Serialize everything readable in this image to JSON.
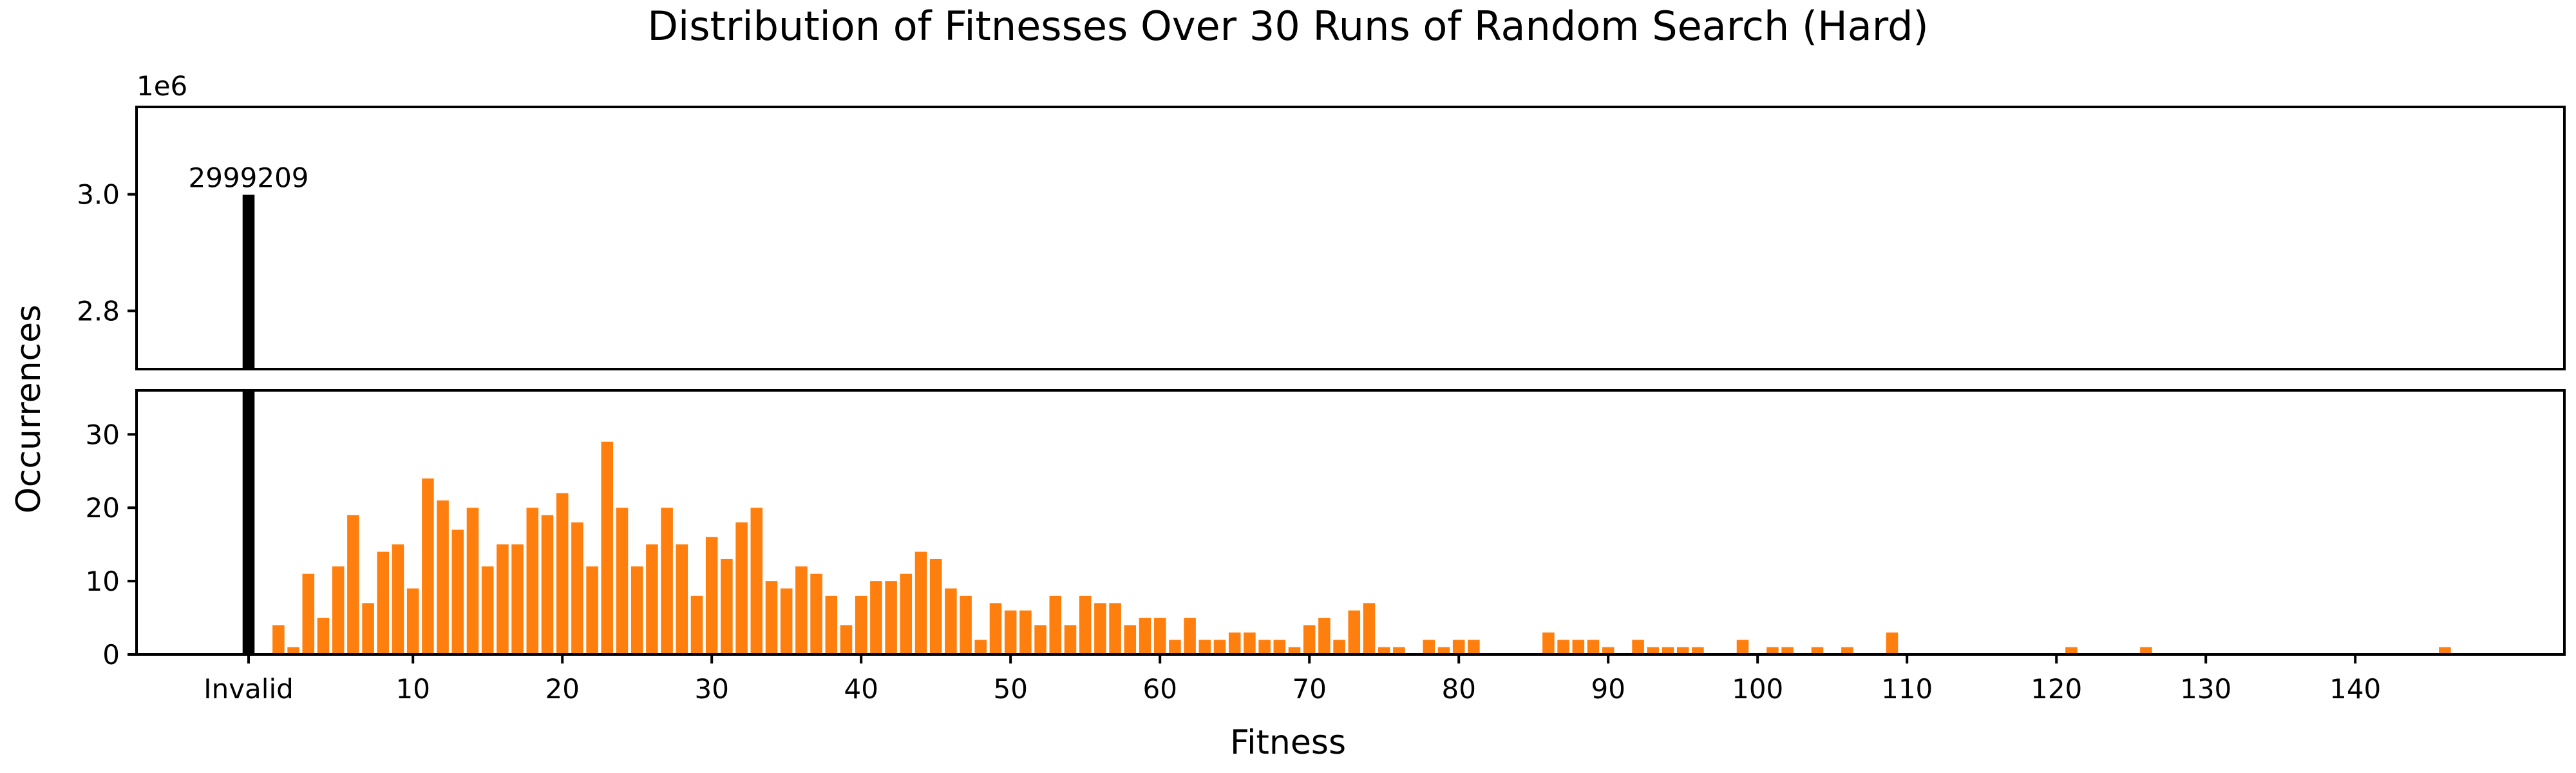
{
  "chart_data": {
    "type": "bar",
    "title": "Distribution of Fitnesses Over 30 Runs of Random Search (Hard)",
    "xlabel": "Fitness",
    "ylabel": "Occurrences",
    "colors": {
      "valid": "#ff7f0e",
      "invalid": "#000000"
    },
    "grid": false,
    "broken_axis": true,
    "top_axis": {
      "ylim": [
        2.7,
        3.15
      ],
      "yticks": [
        "2.8",
        "3.0"
      ],
      "offset_label": "1e6"
    },
    "bottom_axis": {
      "ylim": [
        0,
        36
      ],
      "yticks": [
        "0",
        "10",
        "20",
        "30"
      ]
    },
    "xlim": [
      -7.5,
      155
    ],
    "xticks": [
      {
        "x": 0,
        "label": "Invalid"
      },
      {
        "x": 11,
        "label": "10"
      },
      {
        "x": 21,
        "label": "20"
      },
      {
        "x": 31,
        "label": "30"
      },
      {
        "x": 41,
        "label": "40"
      },
      {
        "x": 51,
        "label": "50"
      },
      {
        "x": 61,
        "label": "60"
      },
      {
        "x": 71,
        "label": "70"
      },
      {
        "x": 81,
        "label": "80"
      },
      {
        "x": 91,
        "label": "90"
      },
      {
        "x": 101,
        "label": "100"
      },
      {
        "x": 111,
        "label": "110"
      },
      {
        "x": 121,
        "label": "120"
      },
      {
        "x": 131,
        "label": "130"
      },
      {
        "x": 141,
        "label": "140"
      }
    ],
    "invalid": {
      "category": "Invalid",
      "value": 2999209,
      "label": "2999209"
    },
    "fitness": [
      2,
      3,
      4,
      5,
      6,
      7,
      8,
      9,
      10,
      11,
      12,
      13,
      14,
      15,
      16,
      17,
      18,
      19,
      20,
      21,
      22,
      23,
      24,
      25,
      26,
      27,
      28,
      29,
      30,
      31,
      32,
      33,
      34,
      35,
      36,
      37,
      38,
      39,
      40,
      41,
      42,
      43,
      44,
      45,
      46,
      47,
      48,
      49,
      50,
      51,
      52,
      53,
      54,
      55,
      56,
      57,
      58,
      59,
      60,
      61,
      62,
      63,
      64,
      65,
      66,
      67,
      68,
      69,
      70,
      71,
      72,
      73,
      74,
      75,
      76,
      77,
      79,
      80,
      81,
      82,
      87,
      88,
      89,
      90,
      91,
      93,
      94,
      95,
      96,
      97,
      100,
      102,
      103,
      105,
      107,
      110,
      122,
      127,
      147
    ],
    "values": [
      4,
      1,
      11,
      5,
      12,
      19,
      7,
      14,
      15,
      9,
      24,
      21,
      17,
      20,
      12,
      15,
      15,
      20,
      19,
      22,
      18,
      12,
      29,
      20,
      12,
      15,
      20,
      15,
      8,
      16,
      13,
      18,
      20,
      10,
      9,
      12,
      11,
      8,
      4,
      8,
      10,
      10,
      11,
      14,
      13,
      9,
      8,
      2,
      7,
      6,
      6,
      4,
      8,
      4,
      8,
      7,
      7,
      4,
      5,
      5,
      2,
      5,
      2,
      2,
      3,
      3,
      2,
      2,
      1,
      4,
      5,
      2,
      6,
      7,
      1,
      1,
      2,
      1,
      2,
      2,
      3,
      2,
      2,
      2,
      1,
      2,
      1,
      1,
      1,
      1,
      2,
      1,
      1,
      1,
      1,
      3,
      1,
      1,
      1
    ]
  }
}
